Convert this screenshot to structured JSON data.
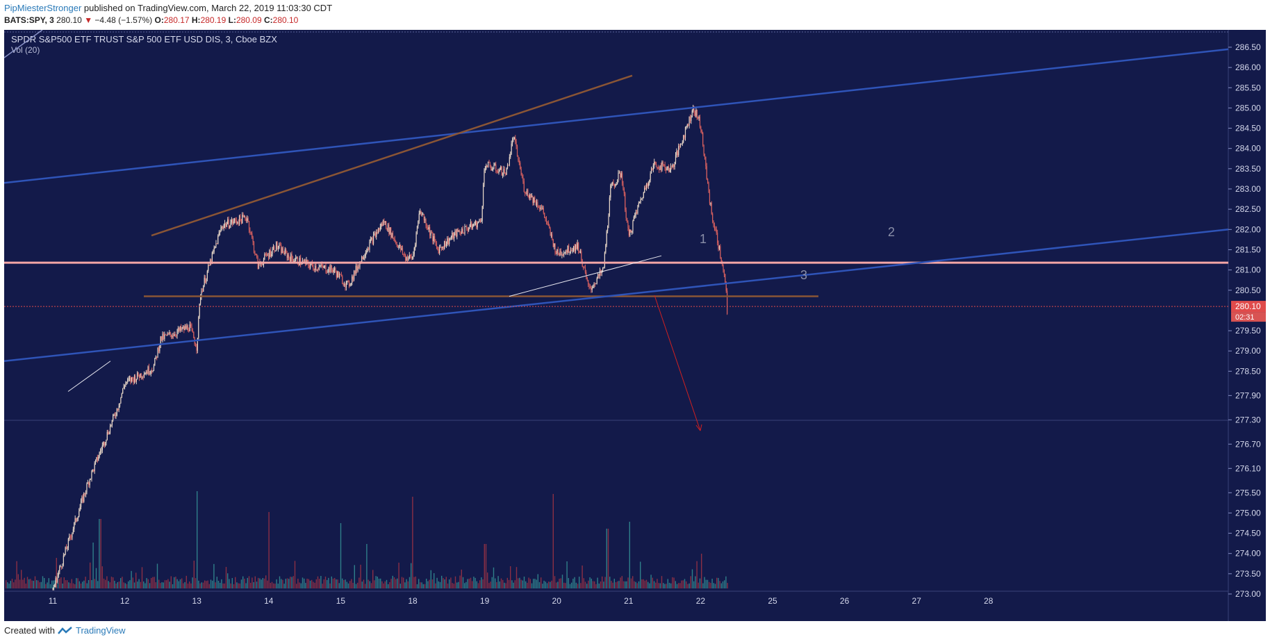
{
  "header": {
    "author": "PipMiesterStronger",
    "published_text": "published on TradingView.com, March 22, 2019 11:03:30 CDT"
  },
  "quote": {
    "symbol": "BATS:SPY, 3",
    "last": "280.10",
    "change": "−4.48 (−1.57%)",
    "o_label": "O:",
    "o": "280.17",
    "h_label": "H:",
    "h": "280.19",
    "l_label": "L:",
    "l": "280.09",
    "c_label": "C:",
    "c": "280.10"
  },
  "footer": {
    "created_with": "Created with",
    "brand": "TradingView"
  },
  "colors": {
    "background": "#131a4a",
    "up_candle": "#e8d7c8",
    "down_candle": "#d7605f",
    "trend_blue": "#2f54b8",
    "trend_brown": "#8a5535",
    "support_pink": "#f4a6a6",
    "last_price": "#e04b4b",
    "arrow_red": "#d02020"
  },
  "chart_data": {
    "type": "candlestick",
    "title": "SPDR S&P500 ETF TRUST S&P 500 ETF USD DIS, 3, Cboe BZX",
    "indicator": "Vol (20)",
    "ylim": [
      272.85,
      287.05
    ],
    "y_ticks": [
      "286.50",
      "286.00",
      "285.50",
      "285.00",
      "284.50",
      "284.00",
      "283.50",
      "283.00",
      "282.50",
      "282.00",
      "281.50",
      "281.00",
      "280.50",
      "279.50",
      "279.00",
      "278.50",
      "277.90",
      "277.30",
      "276.70",
      "276.10",
      "275.50",
      "275.00",
      "274.50",
      "274.00",
      "273.50",
      "273.00"
    ],
    "x_ticks": [
      "11",
      "12",
      "13",
      "14",
      "15",
      "18",
      "19",
      "20",
      "21",
      "22",
      "25",
      "26",
      "27",
      "28"
    ],
    "last_price": "280.10",
    "countdown": "02:31",
    "hidden_tick": "280.00",
    "price_path": [
      {
        "x": 0,
        "y": 273.1
      },
      {
        "x": 0.5,
        "y": 275.8
      },
      {
        "x": 0.9,
        "y": 277.6
      },
      {
        "x": 1.0,
        "y": 278.2
      },
      {
        "x": 1.4,
        "y": 278.6
      },
      {
        "x": 1.5,
        "y": 279.3
      },
      {
        "x": 1.9,
        "y": 279.6
      },
      {
        "x": 2.0,
        "y": 279.1
      },
      {
        "x": 2.05,
        "y": 280.4
      },
      {
        "x": 2.35,
        "y": 282.1
      },
      {
        "x": 2.7,
        "y": 282.3
      },
      {
        "x": 2.85,
        "y": 281.1
      },
      {
        "x": 3.1,
        "y": 281.6
      },
      {
        "x": 3.3,
        "y": 281.3
      },
      {
        "x": 3.6,
        "y": 281.1
      },
      {
        "x": 3.9,
        "y": 281.0
      },
      {
        "x": 4.1,
        "y": 280.6
      },
      {
        "x": 4.35,
        "y": 281.5
      },
      {
        "x": 4.6,
        "y": 282.2
      },
      {
        "x": 4.9,
        "y": 281.3
      },
      {
        "x": 5.0,
        "y": 281.3
      },
      {
        "x": 5.1,
        "y": 282.5
      },
      {
        "x": 5.35,
        "y": 281.5
      },
      {
        "x": 5.6,
        "y": 281.9
      },
      {
        "x": 5.95,
        "y": 282.2
      },
      {
        "x": 6.0,
        "y": 283.6
      },
      {
        "x": 6.3,
        "y": 283.4
      },
      {
        "x": 6.4,
        "y": 284.3
      },
      {
        "x": 6.55,
        "y": 283.0
      },
      {
        "x": 6.8,
        "y": 282.5
      },
      {
        "x": 7.0,
        "y": 281.4
      },
      {
        "x": 7.3,
        "y": 281.6
      },
      {
        "x": 7.45,
        "y": 280.5
      },
      {
        "x": 7.65,
        "y": 281.0
      },
      {
        "x": 7.75,
        "y": 283.0
      },
      {
        "x": 7.9,
        "y": 283.4
      },
      {
        "x": 8.0,
        "y": 281.8
      },
      {
        "x": 8.1,
        "y": 282.4
      },
      {
        "x": 8.35,
        "y": 283.6
      },
      {
        "x": 8.6,
        "y": 283.5
      },
      {
        "x": 8.9,
        "y": 285.0
      },
      {
        "x": 9.0,
        "y": 284.6
      },
      {
        "x": 9.05,
        "y": 283.8
      },
      {
        "x": 9.15,
        "y": 282.4
      },
      {
        "x": 9.25,
        "y": 281.6
      },
      {
        "x": 9.35,
        "y": 280.6
      },
      {
        "x": 9.37,
        "y": 279.8
      },
      {
        "x": 9.38,
        "y": 280.1
      }
    ],
    "volume_spikes": [
      {
        "x": 0.05,
        "v": 0.22
      },
      {
        "x": 0.55,
        "v": 0.33
      },
      {
        "x": 0.65,
        "v": 0.5
      },
      {
        "x": 1.95,
        "v": 0.2
      },
      {
        "x": 2.0,
        "v": 0.7
      },
      {
        "x": 3.0,
        "v": 0.55
      },
      {
        "x": 4.0,
        "v": 0.47
      },
      {
        "x": 4.35,
        "v": 0.32
      },
      {
        "x": 5.0,
        "v": 0.66
      },
      {
        "x": 6.0,
        "v": 0.32
      },
      {
        "x": 6.95,
        "v": 0.68
      },
      {
        "x": 7.7,
        "v": 0.43
      },
      {
        "x": 8.0,
        "v": 0.48
      },
      {
        "x": 9.0,
        "v": 0.25
      }
    ],
    "annotations": [
      {
        "label": "1"
      },
      {
        "label": "2"
      },
      {
        "label": "3"
      }
    ]
  }
}
